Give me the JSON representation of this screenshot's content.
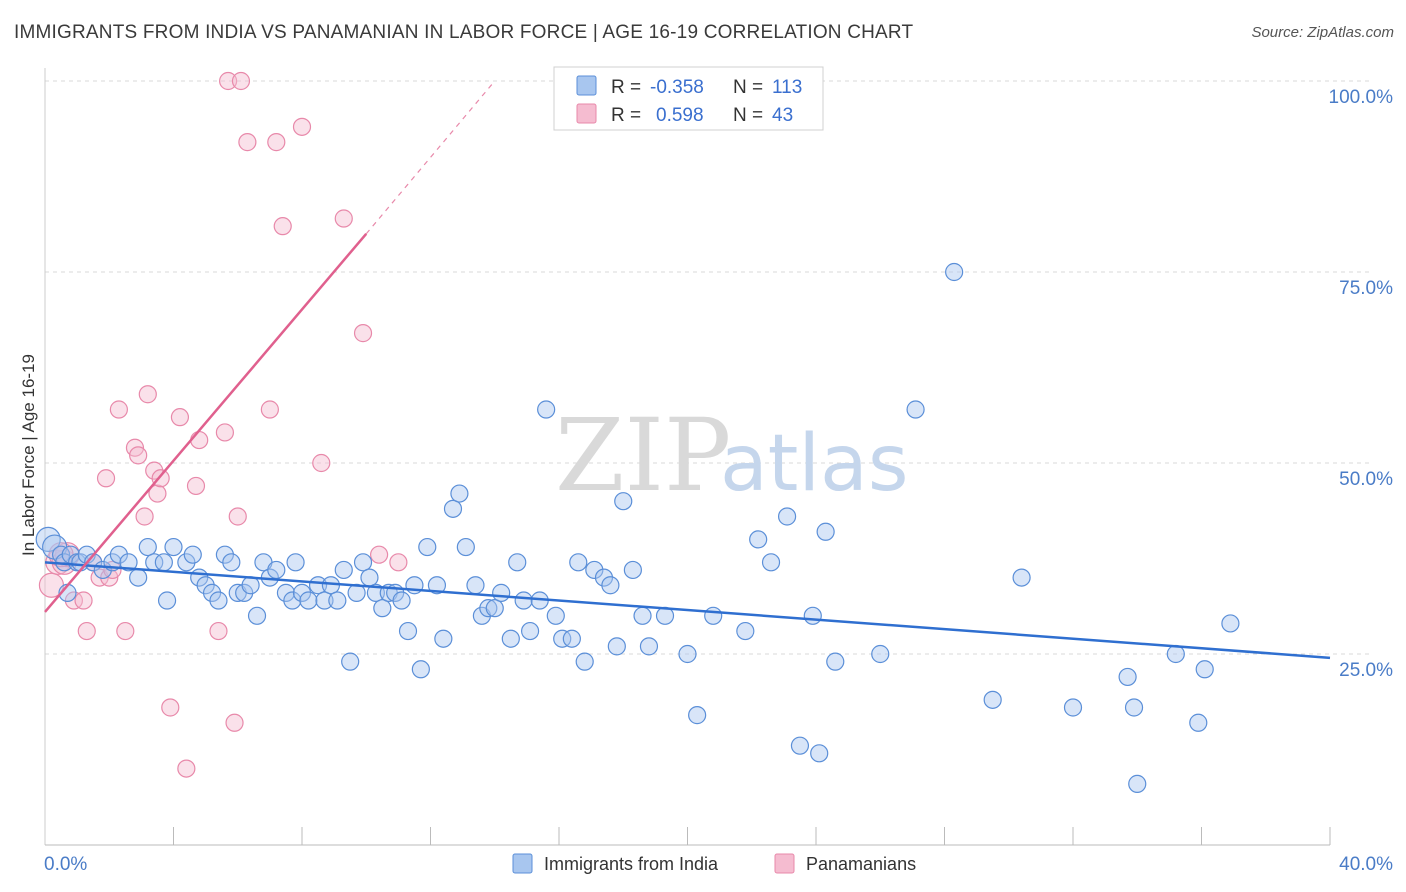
{
  "title": "IMMIGRANTS FROM INDIA VS PANAMANIAN IN LABOR FORCE | AGE 16-19 CORRELATION CHART",
  "source": "Source: ZipAtlas.com",
  "watermark": {
    "zip": "ZIP",
    "atlas": "atlas"
  },
  "legend": {
    "r_label": "R =",
    "n_label": "N =",
    "rows": [
      {
        "r": "-0.358",
        "n": "113"
      },
      {
        "r": "0.598",
        "n": "43"
      }
    ]
  },
  "colors": {
    "india_fill": "#a8c6ef",
    "india_stroke": "#5b8fd8",
    "india_line": "#2f6fd0",
    "pan_fill": "#f5bcd0",
    "pan_stroke": "#e889aa",
    "pan_line": "#e0608e",
    "grid": "#d9d9d9"
  },
  "chart_data": {
    "type": "scatter",
    "ylabel": "In Labor Force | Age 16-19",
    "xlim": [
      0,
      40
    ],
    "ylim": [
      0,
      100
    ],
    "x_tick_labels": [
      "0.0%",
      "40.0%"
    ],
    "y_ticks": [
      25,
      50,
      75,
      100
    ],
    "y_tick_labels": [
      "25.0%",
      "50.0%",
      "75.0%",
      "100.0%"
    ],
    "x_minor_ticks": [
      4,
      8,
      12,
      16,
      20,
      24,
      28,
      32,
      36,
      40
    ],
    "series": [
      {
        "name": "Immigrants from India",
        "trend": {
          "x": [
            0,
            40
          ],
          "y": [
            37.0,
            24.5
          ]
        },
        "points": [
          [
            0.1,
            40
          ],
          [
            0.3,
            39
          ],
          [
            0.5,
            38
          ],
          [
            0.6,
            37
          ],
          [
            0.7,
            33
          ],
          [
            0.8,
            38
          ],
          [
            1.0,
            37
          ],
          [
            1.1,
            37
          ],
          [
            1.3,
            38
          ],
          [
            1.5,
            37
          ],
          [
            1.8,
            36
          ],
          [
            2.1,
            37
          ],
          [
            2.3,
            38
          ],
          [
            2.6,
            37
          ],
          [
            2.9,
            35
          ],
          [
            3.2,
            39
          ],
          [
            3.4,
            37
          ],
          [
            3.7,
            37
          ],
          [
            3.8,
            32
          ],
          [
            4.0,
            39
          ],
          [
            4.4,
            37
          ],
          [
            4.6,
            38
          ],
          [
            4.8,
            35
          ],
          [
            5.0,
            34
          ],
          [
            5.2,
            33
          ],
          [
            5.4,
            32
          ],
          [
            5.6,
            38
          ],
          [
            5.8,
            37
          ],
          [
            6.0,
            33
          ],
          [
            6.2,
            33
          ],
          [
            6.4,
            34
          ],
          [
            6.6,
            30
          ],
          [
            6.8,
            37
          ],
          [
            7.0,
            35
          ],
          [
            7.2,
            36
          ],
          [
            7.5,
            33
          ],
          [
            7.7,
            32
          ],
          [
            7.8,
            37
          ],
          [
            8.0,
            33
          ],
          [
            8.2,
            32
          ],
          [
            8.5,
            34
          ],
          [
            8.7,
            32
          ],
          [
            8.9,
            34
          ],
          [
            9.1,
            32
          ],
          [
            9.3,
            36
          ],
          [
            9.5,
            24
          ],
          [
            9.7,
            33
          ],
          [
            9.9,
            37
          ],
          [
            10.1,
            35
          ],
          [
            10.3,
            33
          ],
          [
            10.5,
            31
          ],
          [
            10.7,
            33
          ],
          [
            10.9,
            33
          ],
          [
            11.1,
            32
          ],
          [
            11.3,
            28
          ],
          [
            11.5,
            34
          ],
          [
            11.7,
            23
          ],
          [
            11.9,
            39
          ],
          [
            12.2,
            34
          ],
          [
            12.4,
            27
          ],
          [
            12.7,
            44
          ],
          [
            12.9,
            46
          ],
          [
            13.1,
            39
          ],
          [
            13.4,
            34
          ],
          [
            13.6,
            30
          ],
          [
            13.8,
            31
          ],
          [
            14.0,
            31
          ],
          [
            14.2,
            33
          ],
          [
            14.5,
            27
          ],
          [
            14.7,
            37
          ],
          [
            14.9,
            32
          ],
          [
            15.1,
            28
          ],
          [
            15.4,
            32
          ],
          [
            15.6,
            57
          ],
          [
            15.9,
            30
          ],
          [
            16.1,
            27
          ],
          [
            16.4,
            27
          ],
          [
            16.6,
            37
          ],
          [
            16.8,
            24
          ],
          [
            17.1,
            36
          ],
          [
            17.4,
            35
          ],
          [
            17.6,
            34
          ],
          [
            17.8,
            26
          ],
          [
            18.0,
            45
          ],
          [
            18.3,
            36
          ],
          [
            18.6,
            30
          ],
          [
            18.8,
            26
          ],
          [
            19.3,
            30
          ],
          [
            20.0,
            25
          ],
          [
            20.3,
            17
          ],
          [
            20.8,
            30
          ],
          [
            21.8,
            28
          ],
          [
            22.2,
            40
          ],
          [
            22.6,
            37
          ],
          [
            23.1,
            43
          ],
          [
            23.5,
            13
          ],
          [
            23.9,
            30
          ],
          [
            24.1,
            12
          ],
          [
            24.3,
            41
          ],
          [
            24.6,
            24
          ],
          [
            26.0,
            25
          ],
          [
            27.1,
            57
          ],
          [
            28.3,
            75
          ],
          [
            29.5,
            19
          ],
          [
            30.4,
            35
          ],
          [
            32.0,
            18
          ],
          [
            33.7,
            22
          ],
          [
            33.9,
            18
          ],
          [
            34.0,
            8
          ],
          [
            35.2,
            25
          ],
          [
            35.9,
            16
          ],
          [
            36.1,
            23
          ],
          [
            36.9,
            29
          ]
        ]
      },
      {
        "name": "Panamanians",
        "trend": {
          "x": [
            0,
            10
          ],
          "y": [
            30.5,
            80.0
          ]
        },
        "trend_dashed": {
          "x": [
            10,
            14
          ],
          "y": [
            80.0,
            100.0
          ]
        },
        "points": [
          [
            0.2,
            34
          ],
          [
            0.4,
            37
          ],
          [
            0.6,
            37
          ],
          [
            0.7,
            38
          ],
          [
            0.9,
            32
          ],
          [
            1.3,
            28
          ],
          [
            1.5,
            37
          ],
          [
            1.7,
            35
          ],
          [
            1.9,
            48
          ],
          [
            2.0,
            35
          ],
          [
            2.1,
            36
          ],
          [
            2.3,
            57
          ],
          [
            2.5,
            28
          ],
          [
            2.8,
            52
          ],
          [
            2.9,
            51
          ],
          [
            3.1,
            43
          ],
          [
            3.2,
            59
          ],
          [
            3.4,
            49
          ],
          [
            3.5,
            46
          ],
          [
            3.6,
            48
          ],
          [
            3.9,
            18
          ],
          [
            4.2,
            56
          ],
          [
            4.4,
            10
          ],
          [
            4.7,
            47
          ],
          [
            4.8,
            53
          ],
          [
            5.4,
            28
          ],
          [
            5.6,
            54
          ],
          [
            5.7,
            100
          ],
          [
            5.9,
            16
          ],
          [
            6.0,
            43
          ],
          [
            6.1,
            100
          ],
          [
            6.3,
            92
          ],
          [
            7.0,
            57
          ],
          [
            7.2,
            92
          ],
          [
            7.4,
            81
          ],
          [
            8.0,
            94
          ],
          [
            8.6,
            50
          ],
          [
            9.3,
            82
          ],
          [
            9.9,
            67
          ],
          [
            10.4,
            38
          ],
          [
            11.0,
            37
          ],
          [
            1.2,
            32
          ],
          [
            0.5,
            38
          ]
        ]
      }
    ]
  },
  "bottom_legend": [
    "Immigrants from India",
    "Panamanians"
  ]
}
